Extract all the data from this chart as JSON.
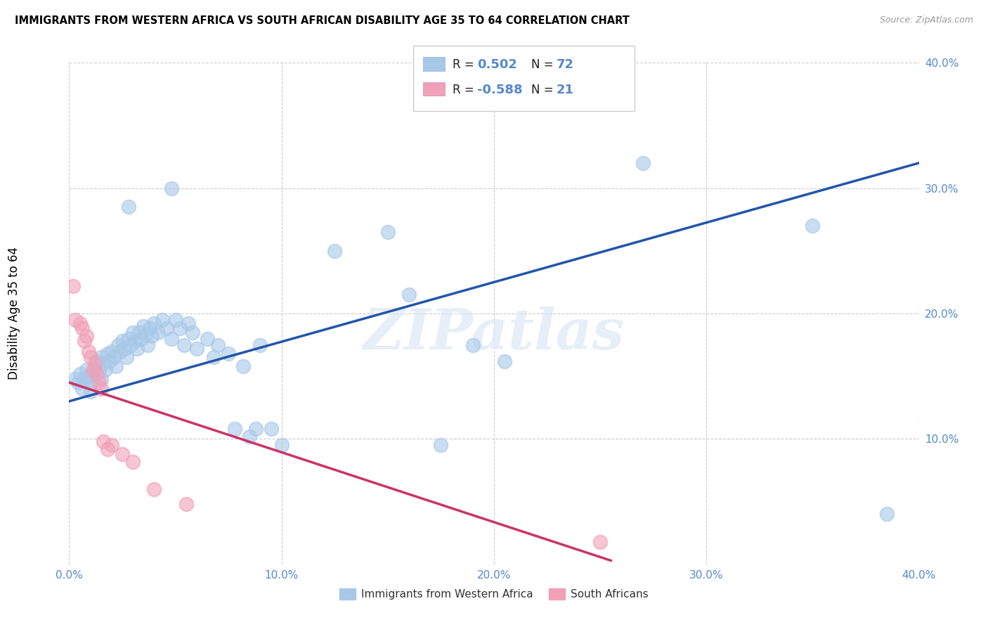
{
  "title": "IMMIGRANTS FROM WESTERN AFRICA VS SOUTH AFRICAN DISABILITY AGE 35 TO 64 CORRELATION CHART",
  "source": "Source: ZipAtlas.com",
  "ylabel": "Disability Age 35 to 64",
  "xlim": [
    0.0,
    0.4
  ],
  "ylim": [
    0.0,
    0.4
  ],
  "xtick_labels": [
    "0.0%",
    "",
    "",
    "",
    "",
    "10.0%",
    "",
    "",
    "",
    "",
    "20.0%",
    "",
    "",
    "",
    "",
    "30.0%",
    "",
    "",
    "",
    "",
    "40.0%"
  ],
  "xtick_vals": [
    0.0,
    0.02,
    0.04,
    0.06,
    0.08,
    0.1,
    0.12,
    0.14,
    0.16,
    0.18,
    0.2,
    0.22,
    0.24,
    0.26,
    0.28,
    0.3,
    0.32,
    0.34,
    0.36,
    0.38,
    0.4
  ],
  "xtick_major_labels": [
    "0.0%",
    "10.0%",
    "20.0%",
    "30.0%",
    "40.0%"
  ],
  "xtick_major_vals": [
    0.0,
    0.1,
    0.2,
    0.3,
    0.4
  ],
  "ytick_labels": [
    "10.0%",
    "20.0%",
    "30.0%",
    "40.0%"
  ],
  "ytick_vals": [
    0.1,
    0.2,
    0.3,
    0.4
  ],
  "r_blue": 0.502,
  "n_blue": 72,
  "r_pink": -0.588,
  "n_pink": 21,
  "blue_color": "#a8c8e8",
  "pink_color": "#f0a0b8",
  "line_blue": "#2255aa",
  "line_pink": "#cc3366",
  "tick_color": "#5588cc",
  "watermark": "ZIPatlas",
  "blue_points": [
    [
      0.003,
      0.148
    ],
    [
      0.004,
      0.145
    ],
    [
      0.005,
      0.152
    ],
    [
      0.006,
      0.14
    ],
    [
      0.007,
      0.148
    ],
    [
      0.008,
      0.155
    ],
    [
      0.009,
      0.15
    ],
    [
      0.01,
      0.145
    ],
    [
      0.01,
      0.138
    ],
    [
      0.011,
      0.152
    ],
    [
      0.012,
      0.158
    ],
    [
      0.013,
      0.162
    ],
    [
      0.014,
      0.155
    ],
    [
      0.015,
      0.165
    ],
    [
      0.015,
      0.148
    ],
    [
      0.016,
      0.16
    ],
    [
      0.017,
      0.155
    ],
    [
      0.018,
      0.168
    ],
    [
      0.019,
      0.162
    ],
    [
      0.02,
      0.17
    ],
    [
      0.021,
      0.165
    ],
    [
      0.022,
      0.158
    ],
    [
      0.023,
      0.175
    ],
    [
      0.024,
      0.17
    ],
    [
      0.025,
      0.178
    ],
    [
      0.026,
      0.172
    ],
    [
      0.027,
      0.165
    ],
    [
      0.028,
      0.18
    ],
    [
      0.029,
      0.175
    ],
    [
      0.03,
      0.185
    ],
    [
      0.031,
      0.178
    ],
    [
      0.032,
      0.172
    ],
    [
      0.033,
      0.185
    ],
    [
      0.034,
      0.18
    ],
    [
      0.035,
      0.19
    ],
    [
      0.036,
      0.183
    ],
    [
      0.037,
      0.175
    ],
    [
      0.038,
      0.188
    ],
    [
      0.039,
      0.182
    ],
    [
      0.04,
      0.192
    ],
    [
      0.042,
      0.185
    ],
    [
      0.044,
      0.195
    ],
    [
      0.046,
      0.188
    ],
    [
      0.048,
      0.18
    ],
    [
      0.05,
      0.195
    ],
    [
      0.052,
      0.188
    ],
    [
      0.054,
      0.175
    ],
    [
      0.056,
      0.192
    ],
    [
      0.058,
      0.185
    ],
    [
      0.06,
      0.172
    ],
    [
      0.065,
      0.18
    ],
    [
      0.068,
      0.165
    ],
    [
      0.07,
      0.175
    ],
    [
      0.075,
      0.168
    ],
    [
      0.078,
      0.108
    ],
    [
      0.082,
      0.158
    ],
    [
      0.085,
      0.102
    ],
    [
      0.088,
      0.108
    ],
    [
      0.09,
      0.175
    ],
    [
      0.095,
      0.108
    ],
    [
      0.1,
      0.095
    ],
    [
      0.028,
      0.285
    ],
    [
      0.048,
      0.3
    ],
    [
      0.125,
      0.25
    ],
    [
      0.15,
      0.265
    ],
    [
      0.16,
      0.215
    ],
    [
      0.175,
      0.095
    ],
    [
      0.19,
      0.175
    ],
    [
      0.205,
      0.162
    ],
    [
      0.27,
      0.32
    ],
    [
      0.35,
      0.27
    ],
    [
      0.385,
      0.04
    ]
  ],
  "pink_points": [
    [
      0.002,
      0.222
    ],
    [
      0.003,
      0.195
    ],
    [
      0.005,
      0.192
    ],
    [
      0.006,
      0.188
    ],
    [
      0.007,
      0.178
    ],
    [
      0.008,
      0.182
    ],
    [
      0.009,
      0.17
    ],
    [
      0.01,
      0.165
    ],
    [
      0.011,
      0.155
    ],
    [
      0.012,
      0.16
    ],
    [
      0.013,
      0.152
    ],
    [
      0.014,
      0.145
    ],
    [
      0.015,
      0.14
    ],
    [
      0.016,
      0.098
    ],
    [
      0.018,
      0.092
    ],
    [
      0.02,
      0.095
    ],
    [
      0.025,
      0.088
    ],
    [
      0.03,
      0.082
    ],
    [
      0.04,
      0.06
    ],
    [
      0.055,
      0.048
    ],
    [
      0.25,
      0.018
    ]
  ],
  "blue_line_x": [
    0.0,
    0.4
  ],
  "blue_line_y": [
    0.13,
    0.32
  ],
  "pink_line_x": [
    0.0,
    0.255
  ],
  "pink_line_y": [
    0.145,
    0.003
  ]
}
